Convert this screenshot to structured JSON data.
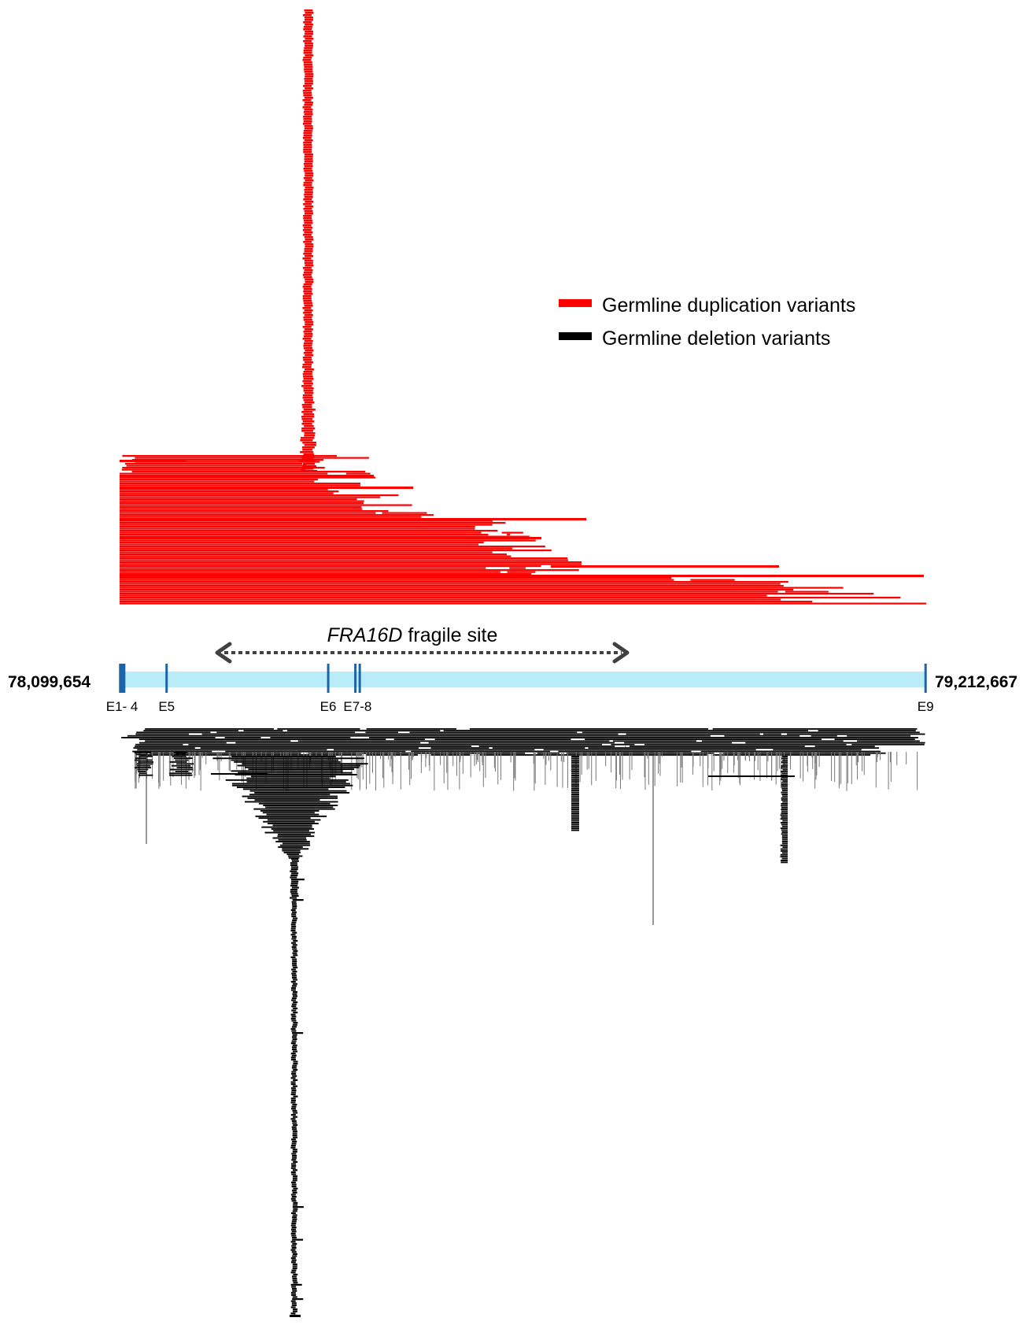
{
  "legend": {
    "items": [
      {
        "label": "Germline duplication variants",
        "color": "#ff0000"
      },
      {
        "label": "Germline deletion variants",
        "color": "#000000"
      }
    ]
  },
  "fragile_site": {
    "name": "FRA16D",
    "suffix": " fragile site",
    "arrow_color": "#404040"
  },
  "gene": {
    "start_label": "78,099,654",
    "end_label": "79,212,667",
    "start": 78099654,
    "end": 79212667,
    "track_color": "#b9ecf8",
    "exon_color": "#1a64a8",
    "exons": [
      {
        "pos": 78100500
      },
      {
        "pos": 78102300
      },
      {
        "pos": 78104100
      },
      {
        "pos": 78106000
      },
      {
        "pos": 78164500
      },
      {
        "pos": 78387500
      },
      {
        "pos": 78425000
      },
      {
        "pos": 78431000
      },
      {
        "pos": 79211800
      }
    ],
    "exon_labels": [
      {
        "text": "E1- 4",
        "pos": 78103000
      },
      {
        "text": "E5",
        "pos": 78164500
      },
      {
        "text": "E6",
        "pos": 78387500
      },
      {
        "text": "E7-8",
        "pos": 78428000
      },
      {
        "text": "E9",
        "pos": 79211800
      }
    ]
  },
  "colors": {
    "duplication": "#ff0000",
    "deletion": "#000000"
  }
}
